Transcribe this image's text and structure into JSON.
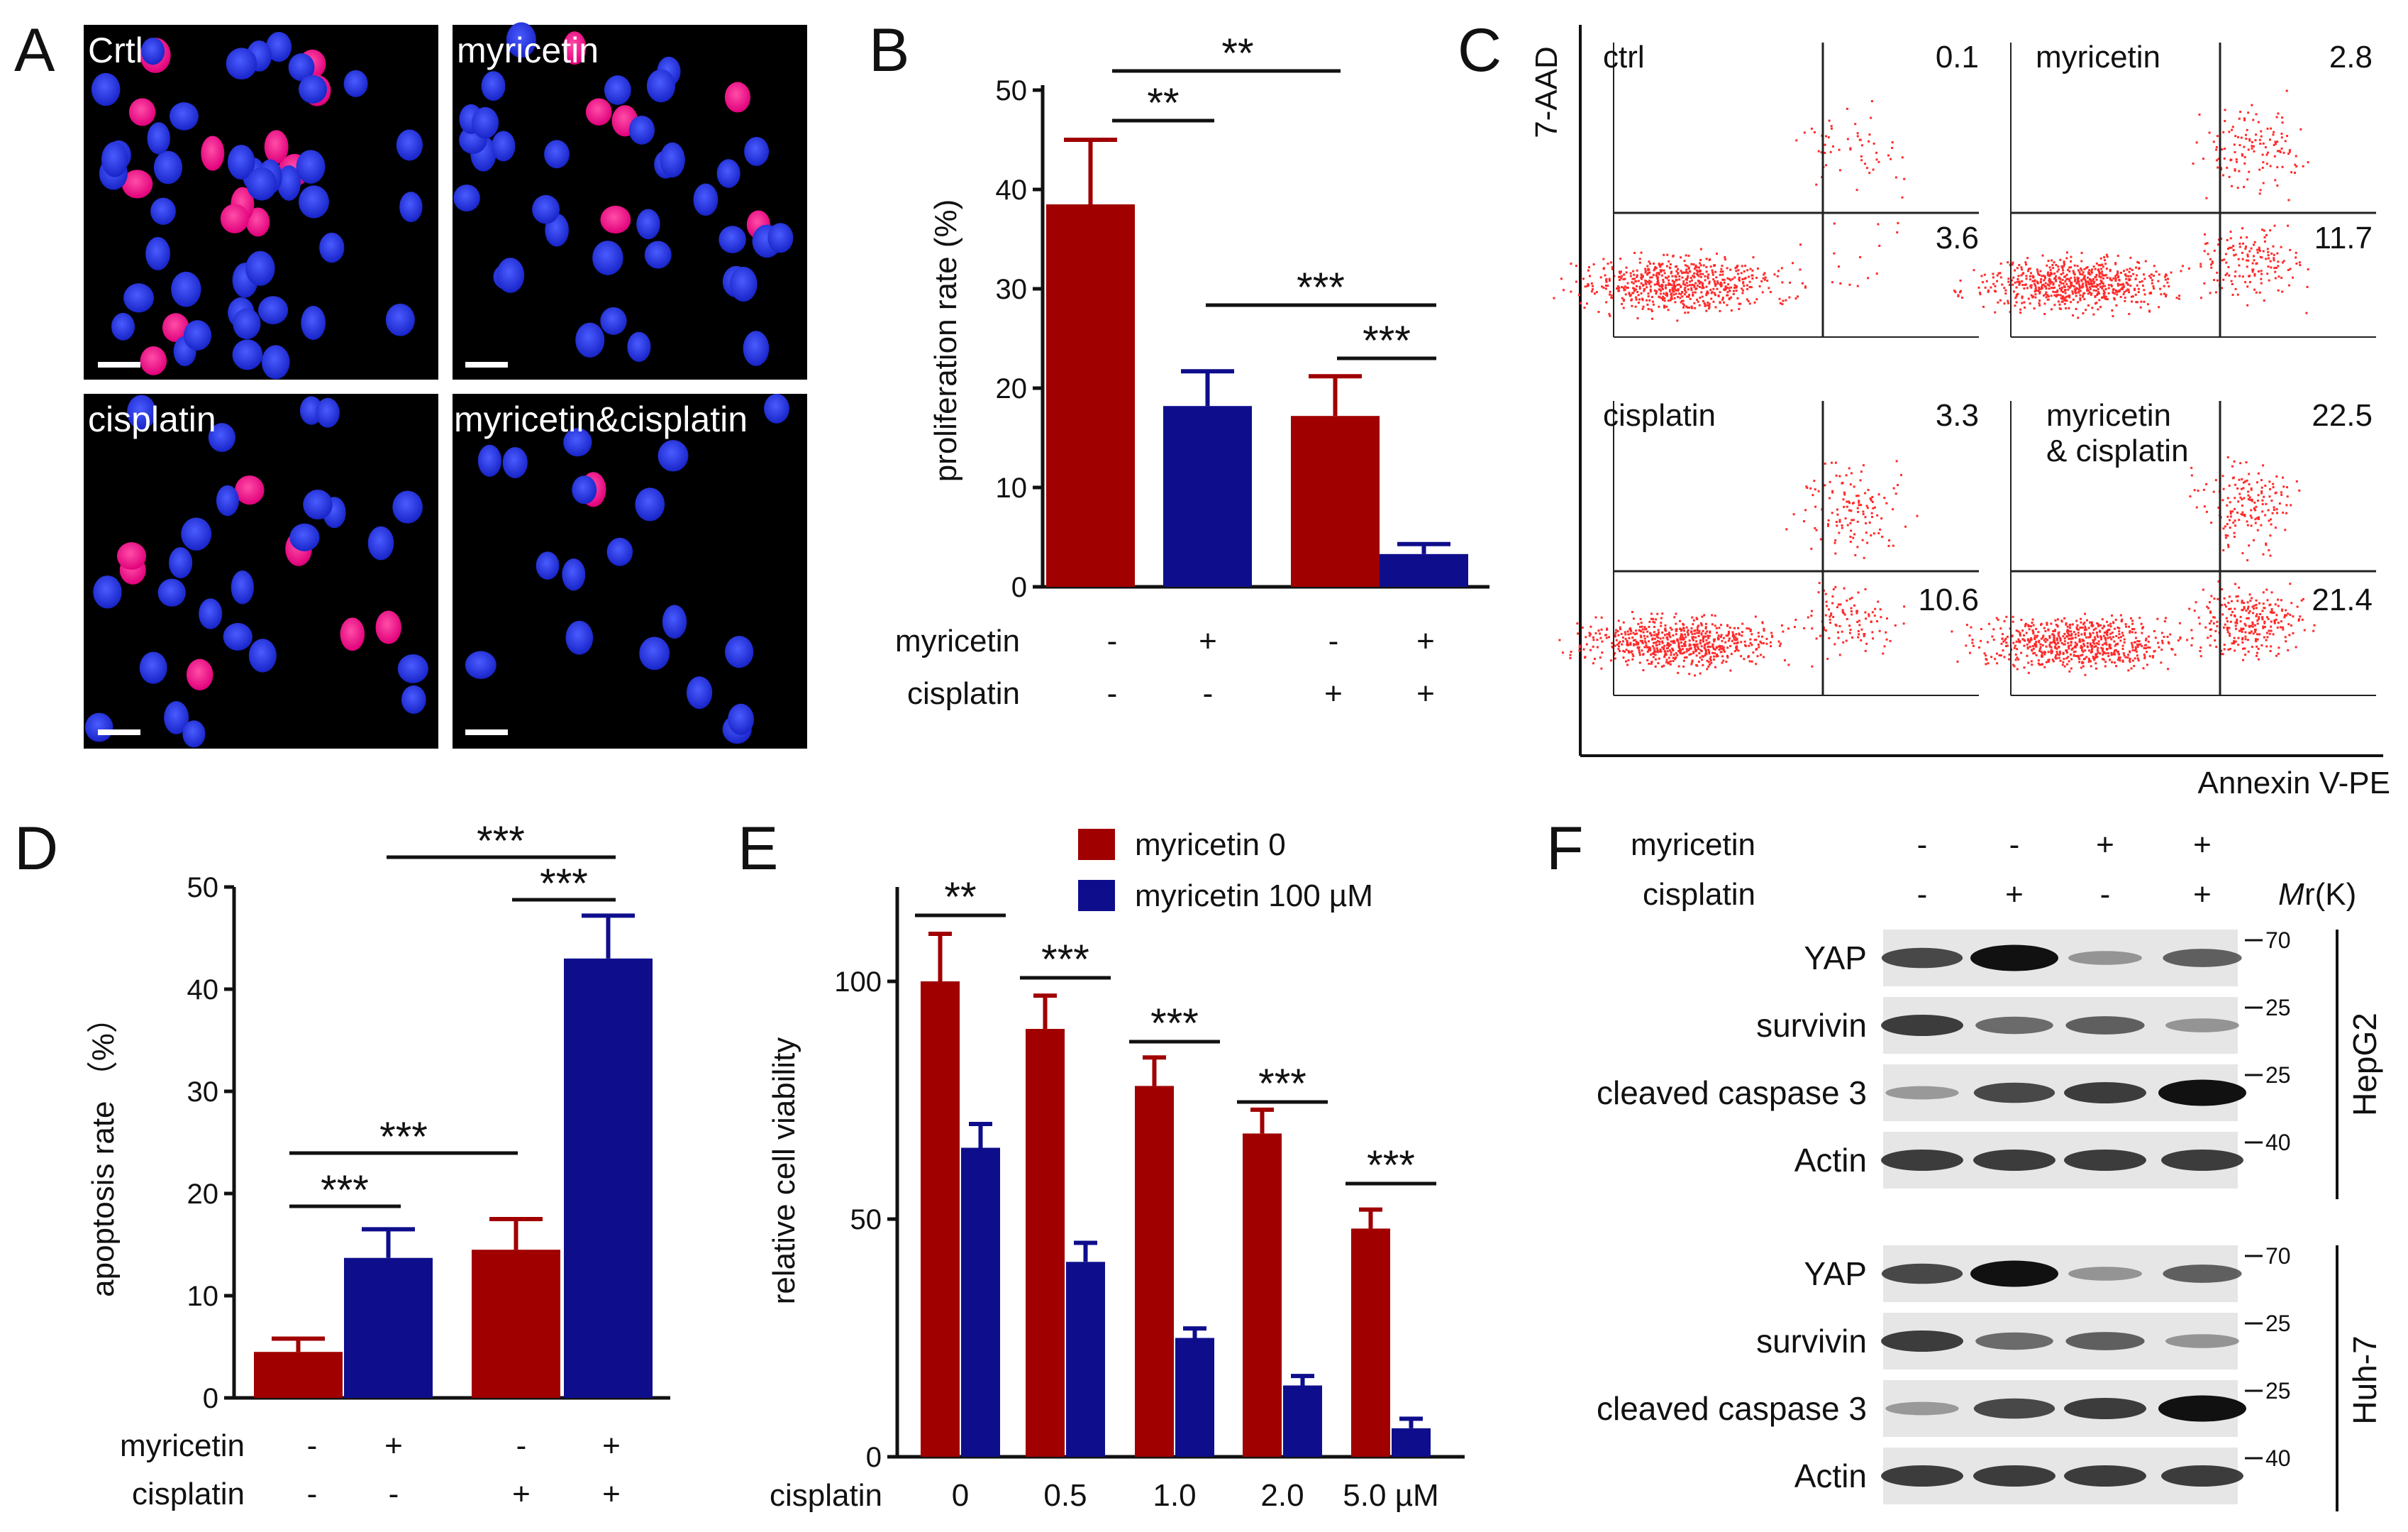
{
  "panels": {
    "a": "A",
    "b": "B",
    "c": "C",
    "d": "D",
    "e": "E",
    "f": "F"
  },
  "colors": {
    "red": "#a00000",
    "blue": "#0e0e8c",
    "scatter": "#ff2a2a"
  },
  "panel_a": {
    "labels": [
      "Crtl",
      "myricetin",
      "cisplatin",
      "myricetin&cisplatin"
    ]
  },
  "panel_b": {
    "ylabel": "proliferation rate (%)",
    "row1": "myricetin",
    "row2": "cisplatin",
    "myr_signs": [
      "-",
      "+",
      "-",
      "+"
    ],
    "cis_signs": [
      "-",
      "-",
      "+",
      "+"
    ],
    "sig": [
      "**",
      "**",
      "***",
      "***"
    ]
  },
  "panel_c": {
    "yaxis": "7-AAD",
    "xaxis": "Annexin V-PE",
    "plots": [
      {
        "name": "ctrl",
        "q2": "0.1",
        "q4": "3.6"
      },
      {
        "name": "myricetin",
        "q2": "2.8",
        "q4": "11.7"
      },
      {
        "name": "cisplatin",
        "q2": "3.3",
        "q4": "10.6"
      },
      {
        "name": "myricetin",
        "name2": "& cisplatin",
        "q2": "22.5",
        "q4": "21.4"
      }
    ]
  },
  "panel_d": {
    "ylabel": "apoptosis rate （%）",
    "row1": "myricetin",
    "row2": "cisplatin",
    "myr_signs": [
      "-",
      "+",
      "-",
      "+"
    ],
    "cis_signs": [
      "-",
      "-",
      "+",
      "+"
    ],
    "sig": [
      "***",
      "***",
      "***",
      "***"
    ]
  },
  "panel_e": {
    "ylabel": "relative cell viability",
    "xprefix": "cisplatin",
    "legend": [
      "myricetin 0",
      "myricetin 100 µM"
    ],
    "sig": [
      "**",
      "***",
      "***",
      "***",
      "***"
    ]
  },
  "panel_f": {
    "col_labels": [
      "myricetin",
      "cisplatin"
    ],
    "myr_signs": [
      "-",
      "-",
      "+",
      "+"
    ],
    "cis_signs": [
      "-",
      "+",
      "-",
      "+"
    ],
    "mr_label_italic": "M",
    "mr_label_rest": "r(K)",
    "bands": [
      "YAP",
      "survivin",
      "cleaved caspase 3",
      "Actin"
    ],
    "markers": [
      "70",
      "25",
      "25",
      "40"
    ],
    "cell_lines": [
      "HepG2",
      "Huh-7"
    ]
  },
  "chart_data": [
    {
      "type": "bar",
      "title": "proliferation rate",
      "categories": [
        "-/-",
        "+/-",
        "-/+",
        "+/+"
      ],
      "values": [
        38.5,
        18.2,
        17.2,
        3.3
      ],
      "errors": [
        6.5,
        3.5,
        4.0,
        1.0
      ],
      "ylabel": "proliferation rate (%)",
      "ylim": [
        0,
        50
      ],
      "yticks": [
        "0",
        "10",
        "20",
        "30",
        "40",
        "50"
      ]
    },
    {
      "type": "bar",
      "title": "apoptosis rate",
      "categories": [
        "-/-",
        "+/-",
        "-/+",
        "+/+"
      ],
      "values": [
        4.5,
        13.7,
        14.5,
        43.0
      ],
      "errors": [
        1.3,
        2.8,
        3.0,
        4.2
      ],
      "ylabel": "apoptosis rate （%）",
      "ylim": [
        0,
        50
      ],
      "yticks": [
        "0",
        "10",
        "20",
        "30",
        "40",
        "50"
      ]
    },
    {
      "type": "bar",
      "title": "relative cell viability",
      "categories": [
        "0",
        "0.5",
        "1.0",
        "2.0",
        "5.0 µM"
      ],
      "series": [
        {
          "name": "myricetin 0",
          "values": [
            100,
            90,
            78,
            68,
            48
          ],
          "errors": [
            10,
            7,
            6,
            5,
            4
          ]
        },
        {
          "name": "myricetin 100 µM",
          "values": [
            65,
            41,
            25,
            15,
            6
          ],
          "errors": [
            5,
            4,
            2,
            2,
            2
          ]
        }
      ],
      "ylabel": "relative cell viability",
      "ylim": [
        0,
        120
      ],
      "yticks": [
        "0",
        "50",
        "100"
      ]
    }
  ]
}
